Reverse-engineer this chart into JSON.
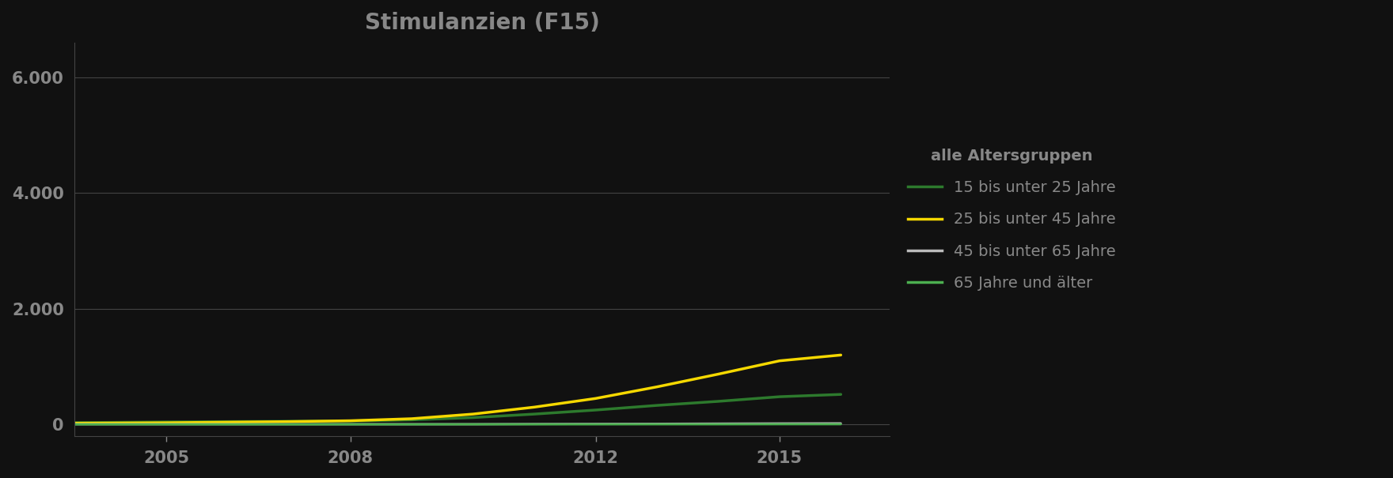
{
  "title": "Stimulanzien (F15)",
  "background_color": "#111111",
  "plot_bg_color": "#111111",
  "text_color": "#888888",
  "title_color": "#888888",
  "grid_color": "#444444",
  "years": [
    2003,
    2004,
    2005,
    2006,
    2007,
    2008,
    2009,
    2010,
    2011,
    2012,
    2013,
    2014,
    2015,
    2016
  ],
  "series": [
    {
      "label": "15 bis unter 25 Jahre",
      "color": "#2d7a2d",
      "linewidth": 2.5,
      "values": [
        30,
        35,
        45,
        50,
        55,
        60,
        80,
        120,
        180,
        250,
        330,
        400,
        480,
        520
      ]
    },
    {
      "label": "25 bis unter 45 Jahre",
      "color": "#f5d800",
      "linewidth": 2.5,
      "values": [
        20,
        25,
        30,
        40,
        50,
        65,
        100,
        180,
        300,
        450,
        650,
        870,
        1100,
        1200
      ]
    },
    {
      "label": "45 bis unter 65 Jahre",
      "color": "#bbbbbb",
      "linewidth": 2.0,
      "values": [
        5,
        5,
        5,
        5,
        5,
        5,
        5,
        5,
        8,
        10,
        12,
        15,
        18,
        20
      ]
    },
    {
      "label": "65 Jahre und älter",
      "color": "#4caf50",
      "linewidth": 2.0,
      "values": [
        2,
        2,
        2,
        2,
        2,
        2,
        2,
        3,
        3,
        3,
        4,
        4,
        5,
        5
      ]
    }
  ],
  "legend_header": "alle Altersgruppen",
  "ylim": [
    -200,
    6600
  ],
  "yticks": [
    0,
    2000,
    4000,
    6000
  ],
  "ytick_labels": [
    "0",
    "2.000",
    "4.000",
    "6.000"
  ],
  "xticks": [
    2005,
    2008,
    2012,
    2015
  ],
  "xlim": [
    2003.5,
    2016.8
  ],
  "title_fontsize": 20,
  "legend_fontsize": 14,
  "tick_fontsize": 15
}
